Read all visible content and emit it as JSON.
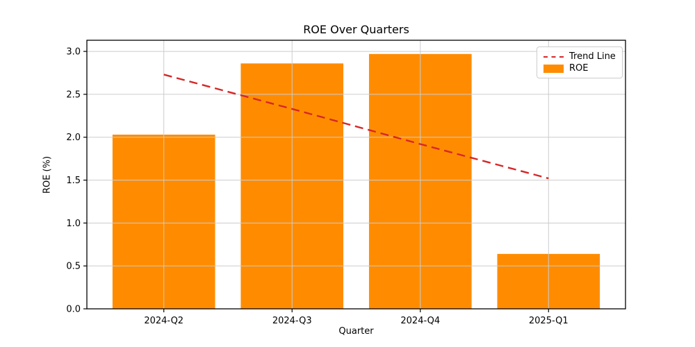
{
  "figure": {
    "title": "ROE Over Quarters",
    "xlabel": "Quarter",
    "ylabel": "ROE (%)",
    "background_color": "#ffffff"
  },
  "legend": {
    "position": "upper right",
    "items": [
      {
        "label": "Trend Line",
        "sample": "dashed-line",
        "color": "#d62728"
      },
      {
        "label": "ROE",
        "sample": "patch",
        "color": "#ff8c00"
      }
    ]
  },
  "chart_data": {
    "type": "bar",
    "title": "ROE Over Quarters",
    "xlabel": "Quarter",
    "ylabel": "ROE (%)",
    "categories": [
      "2024-Q2",
      "2024-Q3",
      "2024-Q4",
      "2025-Q1"
    ],
    "series": [
      {
        "name": "ROE",
        "type": "bar",
        "color": "#ff8c00",
        "values": [
          2.03,
          2.86,
          2.97,
          0.64
        ]
      },
      {
        "name": "Trend Line",
        "type": "line",
        "line_style": "dashed",
        "color": "#d62728",
        "values": [
          2.73,
          2.33,
          1.92,
          1.52
        ]
      }
    ],
    "bar_width": 0.8,
    "ylim": [
      0,
      3.13
    ],
    "xlim": [
      -0.6,
      3.6
    ],
    "yticks": [
      "0.0",
      "0.5",
      "1.0",
      "1.5",
      "2.0",
      "2.5",
      "3.0"
    ],
    "grid": true,
    "grid_color": "#cccccc",
    "axis_color": "#000000",
    "legend_position": "upper right"
  }
}
